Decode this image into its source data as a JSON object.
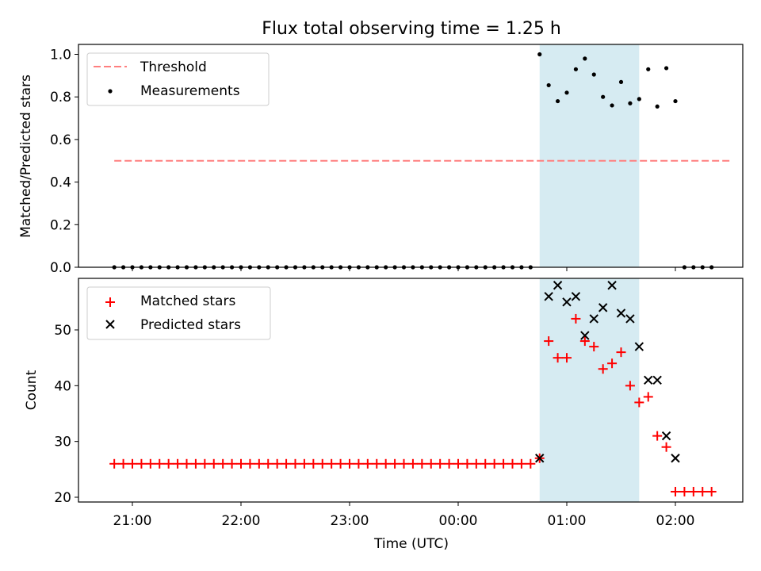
{
  "chart_data": [
    {
      "type": "scatter",
      "title": "Flux total observing time = 1.25 h",
      "ylabel": "Matched/Predicted stars",
      "ylim": [
        0,
        1.05
      ],
      "yticks": [
        "0.0",
        "0.2",
        "0.4",
        "0.6",
        "0.8",
        "1.0"
      ],
      "shaded_span": [
        "00:45",
        "01:40"
      ],
      "legend_position": "upper-left",
      "threshold": {
        "name": "Threshold",
        "value": 0.5,
        "x_range": [
          "20:50",
          "02:30"
        ],
        "color": "#ff7f7f"
      },
      "series": [
        {
          "name": "Measurements",
          "color": "#000000",
          "x": [
            "20:50",
            "20:55",
            "21:00",
            "21:05",
            "21:10",
            "21:15",
            "21:20",
            "21:25",
            "21:30",
            "21:35",
            "21:40",
            "21:45",
            "21:50",
            "21:55",
            "22:00",
            "22:05",
            "22:10",
            "22:15",
            "22:20",
            "22:25",
            "22:30",
            "22:35",
            "22:40",
            "22:45",
            "22:50",
            "22:55",
            "23:00",
            "23:05",
            "23:10",
            "23:15",
            "23:20",
            "23:25",
            "23:30",
            "23:35",
            "23:40",
            "23:45",
            "23:50",
            "23:55",
            "00:00",
            "00:05",
            "00:10",
            "00:15",
            "00:20",
            "00:25",
            "00:30",
            "00:35",
            "00:40",
            "00:45",
            "00:50",
            "00:55",
            "01:00",
            "01:05",
            "01:10",
            "01:15",
            "01:20",
            "01:25",
            "01:30",
            "01:35",
            "01:40",
            "01:45",
            "01:50",
            "01:55",
            "02:00",
            "02:05",
            "02:10",
            "02:15",
            "02:20"
          ],
          "y": [
            0,
            0,
            0,
            0,
            0,
            0,
            0,
            0,
            0,
            0,
            0,
            0,
            0,
            0,
            0,
            0,
            0,
            0,
            0,
            0,
            0,
            0,
            0,
            0,
            0,
            0,
            0,
            0,
            0,
            0,
            0,
            0,
            0,
            0,
            0,
            0,
            0,
            0,
            0,
            0,
            0,
            0,
            0,
            0,
            0,
            0,
            0,
            1.0,
            0.855,
            0.78,
            0.82,
            0.93,
            0.98,
            0.905,
            0.8,
            0.76,
            0.87,
            0.77,
            0.79,
            0.93,
            0.755,
            0.935,
            0.78,
            0,
            0,
            0,
            0
          ]
        }
      ]
    },
    {
      "type": "scatter",
      "xlabel": "Time (UTC)",
      "ylabel": "Count",
      "ylim": [
        19.5,
        59
      ],
      "yticks": [
        "20",
        "30",
        "40",
        "50"
      ],
      "xticks": [
        "21:00",
        "22:00",
        "23:00",
        "00:00",
        "01:00",
        "02:00"
      ],
      "shaded_span": [
        "00:45",
        "01:40"
      ],
      "legend_position": "upper-left",
      "series": [
        {
          "name": "Matched stars",
          "marker": "plus",
          "color": "#ff0000",
          "x": [
            "20:50",
            "20:55",
            "21:00",
            "21:05",
            "21:10",
            "21:15",
            "21:20",
            "21:25",
            "21:30",
            "21:35",
            "21:40",
            "21:45",
            "21:50",
            "21:55",
            "22:00",
            "22:05",
            "22:10",
            "22:15",
            "22:20",
            "22:25",
            "22:30",
            "22:35",
            "22:40",
            "22:45",
            "22:50",
            "22:55",
            "23:00",
            "23:05",
            "23:10",
            "23:15",
            "23:20",
            "23:25",
            "23:30",
            "23:35",
            "23:40",
            "23:45",
            "23:50",
            "23:55",
            "00:00",
            "00:05",
            "00:10",
            "00:15",
            "00:20",
            "00:25",
            "00:30",
            "00:35",
            "00:40",
            "00:45",
            "00:50",
            "00:55",
            "01:00",
            "01:05",
            "01:10",
            "01:15",
            "01:20",
            "01:25",
            "01:30",
            "01:35",
            "01:40",
            "01:45",
            "01:50",
            "01:55",
            "02:00",
            "02:05",
            "02:10",
            "02:15",
            "02:20"
          ],
          "y": [
            26,
            26,
            26,
            26,
            26,
            26,
            26,
            26,
            26,
            26,
            26,
            26,
            26,
            26,
            26,
            26,
            26,
            26,
            26,
            26,
            26,
            26,
            26,
            26,
            26,
            26,
            26,
            26,
            26,
            26,
            26,
            26,
            26,
            26,
            26,
            26,
            26,
            26,
            26,
            26,
            26,
            26,
            26,
            26,
            26,
            26,
            26,
            27,
            48,
            45,
            45,
            52,
            48,
            47,
            43,
            44,
            46,
            40,
            37,
            38,
            31,
            29,
            21,
            21,
            21,
            21,
            21
          ]
        },
        {
          "name": "Predicted stars",
          "marker": "x",
          "color": "#000000",
          "x": [
            "00:45",
            "00:50",
            "00:55",
            "01:00",
            "01:05",
            "01:10",
            "01:15",
            "01:20",
            "01:25",
            "01:30",
            "01:35",
            "01:40",
            "01:45",
            "01:50",
            "01:55",
            "02:00"
          ],
          "y": [
            27,
            56,
            58,
            55,
            56,
            49,
            52,
            54,
            58,
            53,
            52,
            47,
            41,
            41,
            31,
            27
          ]
        }
      ]
    }
  ]
}
